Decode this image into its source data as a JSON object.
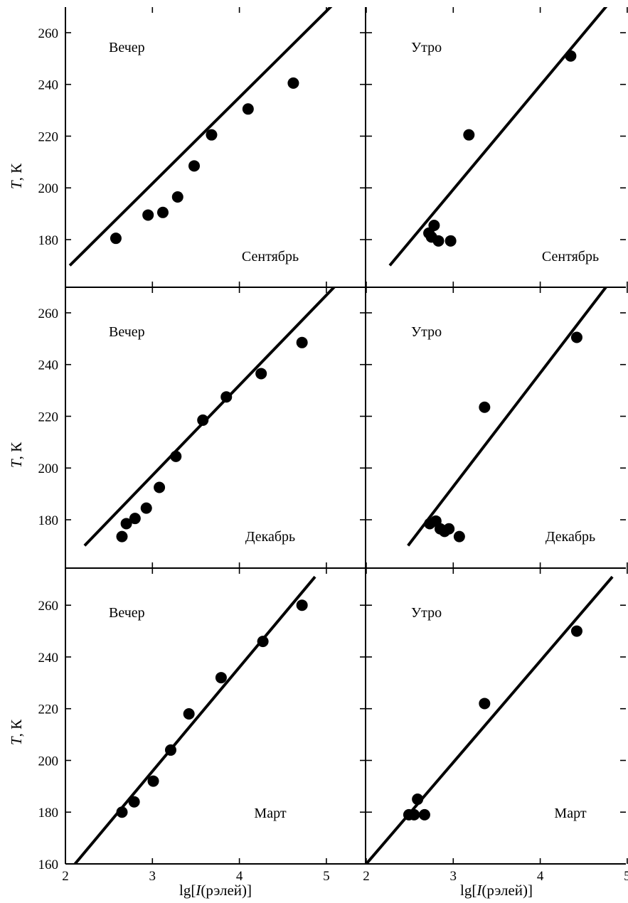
{
  "chart_data": {
    "type": "scatter",
    "xlabel_main": "lg",
    "xlabel_bracket_open": "[",
    "xlabel_var": "I",
    "xlabel_unit": "(рэлей)]",
    "ylabel_var": "T",
    "ylabel_unit": ", К",
    "xlim": [
      2,
      5
    ],
    "ylim_top_rows": [
      170,
      270
    ],
    "ylim_bottom_row": [
      160,
      270
    ],
    "x_ticks": [
      2,
      3,
      4,
      5
    ],
    "y_ticks_top_rows": [
      180,
      200,
      220,
      240,
      260
    ],
    "y_ticks_bottom_row": [
      160,
      180,
      200,
      220,
      240,
      260
    ],
    "panels": [
      {
        "row": 0,
        "col": 0,
        "time": "Вечер",
        "month": "Сентябрь",
        "points": [
          [
            2.58,
            180.5
          ],
          [
            2.95,
            189.5
          ],
          [
            3.12,
            190.5
          ],
          [
            3.29,
            196.5
          ],
          [
            3.48,
            208.5
          ],
          [
            3.68,
            220.5
          ],
          [
            4.1,
            230.5
          ],
          [
            4.62,
            240.5
          ]
        ],
        "fit": [
          [
            2.05,
            170
          ],
          [
            5.08,
            271
          ]
        ]
      },
      {
        "row": 0,
        "col": 1,
        "time": "Утро",
        "month": "Сентябрь",
        "points": [
          [
            2.72,
            182.5
          ],
          [
            2.75,
            181
          ],
          [
            2.78,
            185.5
          ],
          [
            2.83,
            179.5
          ],
          [
            2.97,
            179.5
          ],
          [
            3.18,
            220.5
          ],
          [
            4.35,
            251
          ]
        ],
        "fit": [
          [
            2.27,
            170
          ],
          [
            4.78,
            271
          ]
        ]
      },
      {
        "row": 1,
        "col": 0,
        "time": "Вечер",
        "month": "Декабрь",
        "points": [
          [
            2.65,
            173.5
          ],
          [
            2.7,
            178.5
          ],
          [
            2.8,
            180.5
          ],
          [
            2.93,
            184.5
          ],
          [
            3.08,
            192.5
          ],
          [
            3.27,
            204.5
          ],
          [
            3.58,
            218.5
          ],
          [
            3.85,
            227.5
          ],
          [
            4.25,
            236.5
          ],
          [
            4.72,
            248.5
          ]
        ],
        "fit": [
          [
            2.22,
            170
          ],
          [
            5.12,
            271
          ]
        ]
      },
      {
        "row": 1,
        "col": 1,
        "time": "Утро",
        "month": "Декабрь",
        "points": [
          [
            2.73,
            178.5
          ],
          [
            2.8,
            179.5
          ],
          [
            2.85,
            176.5
          ],
          [
            2.9,
            175.5
          ],
          [
            2.95,
            176.5
          ],
          [
            3.07,
            173.5
          ],
          [
            3.36,
            223.5
          ],
          [
            4.42,
            250.5
          ]
        ],
        "fit": [
          [
            2.48,
            170
          ],
          [
            4.78,
            271
          ]
        ]
      },
      {
        "row": 2,
        "col": 0,
        "time": "Вечер",
        "month": "Март",
        "points": [
          [
            2.65,
            180
          ],
          [
            2.79,
            184
          ],
          [
            3.01,
            192
          ],
          [
            3.21,
            204
          ],
          [
            3.42,
            218
          ],
          [
            3.79,
            232
          ],
          [
            4.27,
            246
          ],
          [
            4.72,
            260
          ]
        ],
        "fit": [
          [
            2.11,
            160
          ],
          [
            4.87,
            271
          ]
        ]
      },
      {
        "row": 2,
        "col": 1,
        "time": "Утро",
        "month": "Март",
        "points": [
          [
            2.49,
            179
          ],
          [
            2.55,
            179
          ],
          [
            2.59,
            185
          ],
          [
            2.67,
            179
          ],
          [
            3.36,
            222
          ],
          [
            4.42,
            250
          ]
        ],
        "fit": [
          [
            2.0,
            160
          ],
          [
            4.83,
            271
          ]
        ]
      }
    ]
  }
}
